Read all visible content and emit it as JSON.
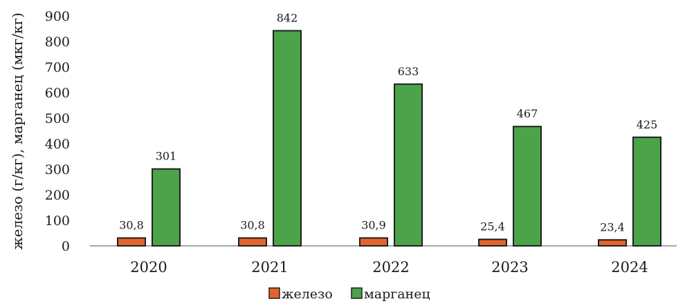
{
  "chart_data": {
    "type": "bar",
    "categories": [
      "2020",
      "2021",
      "2022",
      "2023",
      "2024"
    ],
    "series": [
      {
        "name": "железо",
        "values": [
          30.8,
          30.8,
          30.9,
          25.4,
          23.4
        ],
        "labels": [
          "30,8",
          "30,8",
          "30,9",
          "25,4",
          "23,4"
        ],
        "color": "#E2642A"
      },
      {
        "name": "марганец",
        "values": [
          301,
          842,
          633,
          467,
          425
        ],
        "labels": [
          "301",
          "842",
          "633",
          "467",
          "425"
        ],
        "color": "#4CA34A"
      }
    ],
    "title": "",
    "xlabel": "",
    "ylabel": "железо (г/кг), марганец (мкг/кг)",
    "ylim": [
      0,
      900
    ],
    "yticks": [
      0,
      100,
      200,
      300,
      400,
      500,
      600,
      700,
      800,
      900
    ],
    "grid": false,
    "legend": "bottom-center"
  }
}
